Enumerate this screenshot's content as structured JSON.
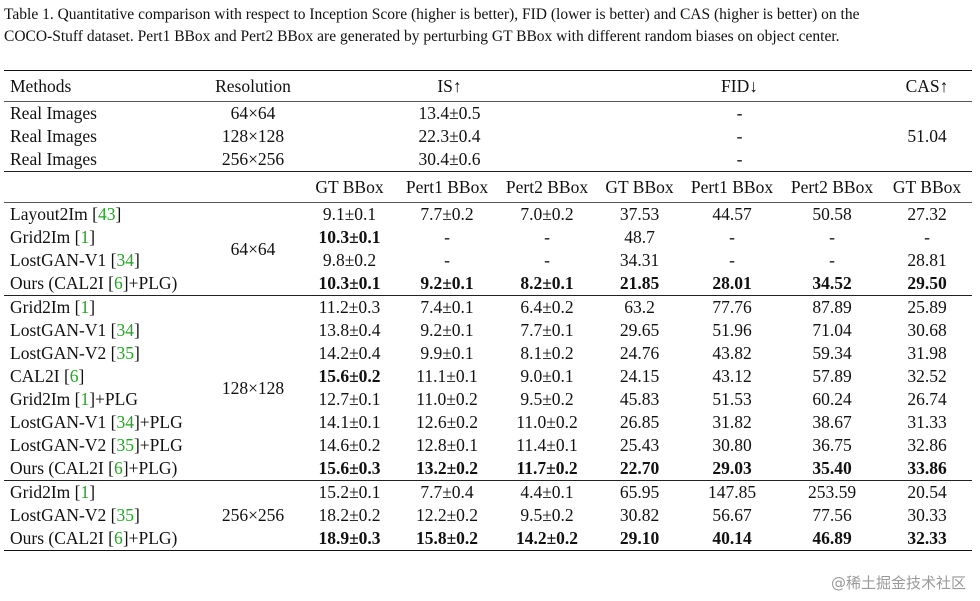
{
  "caption": {
    "line1": "Table 1. Quantitative comparison with respect to Inception Score (higher is better), FID (lower is better) and CAS (higher is better) on the",
    "line2": "COCO-Stuff dataset. Pert1 BBox and Pert2 BBox are generated by perturbing GT BBox with different random biases on object center."
  },
  "header": {
    "methods": "Methods",
    "resolution": "Resolution",
    "is": "IS↑",
    "fid": "FID↓",
    "cas": "CAS↑"
  },
  "real": [
    {
      "method": "Real Images",
      "res": "64×64",
      "is": "13.4±0.5",
      "fid": "-",
      "cas": ""
    },
    {
      "method": "Real Images",
      "res": "128×128",
      "is": "22.3±0.4",
      "fid": "-",
      "cas": "51.04"
    },
    {
      "method": "Real Images",
      "res": "256×256",
      "is": "30.4±0.6",
      "fid": "-",
      "cas": ""
    }
  ],
  "subheader": [
    "GT BBox",
    "Pert1 BBox",
    "Pert2 BBox",
    "GT BBox",
    "Pert1 BBox",
    "Pert2 BBox",
    "GT BBox"
  ],
  "groups": [
    {
      "res": "64×64",
      "rows": [
        {
          "pre": "Layout2Im [",
          "ref": "43",
          "post": "]",
          "vals": [
            "9.1±0.1",
            "7.7±0.2",
            "7.0±0.2",
            "37.53",
            "44.57",
            "50.58",
            "27.32"
          ],
          "bold": []
        },
        {
          "pre": "Grid2Im [",
          "ref": "1",
          "post": "]",
          "vals": [
            "10.3±0.1",
            "-",
            "-",
            "48.7",
            "-",
            "-",
            "-"
          ],
          "bold": [
            0
          ]
        },
        {
          "pre": "LostGAN-V1 [",
          "ref": "34",
          "post": "]",
          "vals": [
            "9.8±0.2",
            "-",
            "-",
            "34.31",
            "-",
            "-",
            "28.81"
          ],
          "bold": []
        },
        {
          "pre": "Ours (CAL2I [",
          "ref": "6",
          "post": "]+PLG)",
          "vals": [
            "10.3±0.1",
            "9.2±0.1",
            "8.2±0.1",
            "21.85",
            "28.01",
            "34.52",
            "29.50"
          ],
          "bold": [
            0,
            1,
            2,
            3,
            4,
            5,
            6
          ]
        }
      ]
    },
    {
      "res": "128×128",
      "rows": [
        {
          "pre": "Grid2Im [",
          "ref": "1",
          "post": "]",
          "vals": [
            "11.2±0.3",
            "7.4±0.1",
            "6.4±0.2",
            "63.2",
            "77.76",
            "87.89",
            "25.89"
          ],
          "bold": []
        },
        {
          "pre": "LostGAN-V1 [",
          "ref": "34",
          "post": "]",
          "vals": [
            "13.8±0.4",
            "9.2±0.1",
            "7.7±0.1",
            "29.65",
            "51.96",
            "71.04",
            "30.68"
          ],
          "bold": []
        },
        {
          "pre": "LostGAN-V2 [",
          "ref": "35",
          "post": "]",
          "vals": [
            "14.2±0.4",
            "9.9±0.1",
            "8.1±0.2",
            "24.76",
            "43.82",
            "59.34",
            "31.98"
          ],
          "bold": []
        },
        {
          "pre": "CAL2I [",
          "ref": "6",
          "post": "]",
          "vals": [
            "15.6±0.2",
            "11.1±0.1",
            "9.0±0.1",
            "24.15",
            "43.12",
            "57.89",
            "32.52"
          ],
          "bold": [
            0
          ]
        },
        {
          "pre": "Grid2Im [",
          "ref": "1",
          "post": "]+PLG",
          "vals": [
            "12.7±0.1",
            "11.0±0.2",
            "9.5±0.2",
            "45.83",
            "51.53",
            "60.24",
            "26.74"
          ],
          "bold": []
        },
        {
          "pre": "LostGAN-V1 [",
          "ref": "34",
          "post": "]+PLG",
          "vals": [
            "14.1±0.1",
            "12.6±0.2",
            "11.0±0.2",
            "26.85",
            "31.82",
            "38.67",
            "31.33"
          ],
          "bold": []
        },
        {
          "pre": "LostGAN-V2 [",
          "ref": "35",
          "post": "]+PLG",
          "vals": [
            "14.6±0.2",
            "12.8±0.1",
            "11.4±0.1",
            "25.43",
            "30.80",
            "36.75",
            "32.86"
          ],
          "bold": []
        },
        {
          "pre": "Ours (CAL2I [",
          "ref": "6",
          "post": "]+PLG)",
          "vals": [
            "15.6±0.3",
            "13.2±0.2",
            "11.7±0.2",
            "22.70",
            "29.03",
            "35.40",
            "33.86"
          ],
          "bold": [
            0,
            1,
            2,
            3,
            4,
            5,
            6
          ]
        }
      ]
    },
    {
      "res": "256×256",
      "rows": [
        {
          "pre": "Grid2Im [",
          "ref": "1",
          "post": "]",
          "vals": [
            "15.2±0.1",
            "7.7±0.4",
            "4.4±0.1",
            "65.95",
            "147.85",
            "253.59",
            "20.54"
          ],
          "bold": []
        },
        {
          "pre": "LostGAN-V2 [",
          "ref": "35",
          "post": "]",
          "vals": [
            "18.2±0.2",
            "12.2±0.2",
            "9.5±0.2",
            "30.82",
            "56.67",
            "77.56",
            "30.33"
          ],
          "bold": []
        },
        {
          "pre": "Ours (CAL2I [",
          "ref": "6",
          "post": "]+PLG)",
          "vals": [
            "18.9±0.3",
            "15.8±0.2",
            "14.2±0.2",
            "29.10",
            "40.14",
            "46.89",
            "32.33"
          ],
          "bold": [
            0,
            1,
            2,
            3,
            4,
            5,
            6
          ]
        }
      ]
    }
  ],
  "watermark": "@稀土掘金技术社区"
}
